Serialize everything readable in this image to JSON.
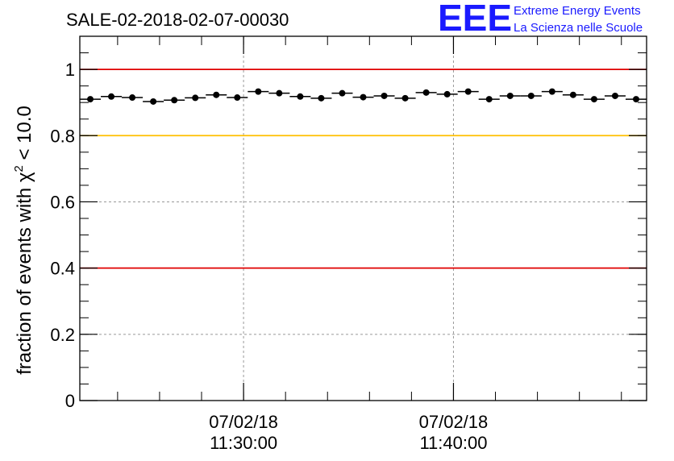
{
  "brand": {
    "logo_text": "EEE",
    "line1": "Extreme Energy Events",
    "line2": "La Scienza nelle Scuole",
    "color": "#1a1aff"
  },
  "chart_data": {
    "type": "scatter",
    "title": "SALE-02-2018-02-07-00030",
    "ylabel": "fraction of events with χ² < 10.0",
    "ylabel_parts": {
      "before": "fraction of events with χ",
      "sup": "2",
      "after": " < 10.0"
    },
    "ylim": [
      0,
      1.1
    ],
    "xlim": [
      0,
      27
    ],
    "xticks": [
      {
        "x": 7.8,
        "line1": "07/02/18",
        "line2": "11:30:00"
      },
      {
        "x": 17.8,
        "line1": "07/02/18",
        "line2": "11:40:00"
      }
    ],
    "yticks": [
      {
        "value": 0,
        "label": "0"
      },
      {
        "value": 0.2,
        "label": "0.2"
      },
      {
        "value": 0.4,
        "label": "0.4"
      },
      {
        "value": 0.6,
        "label": "0.6"
      },
      {
        "value": 0.8,
        "label": "0.8"
      },
      {
        "value": 1,
        "label": "1"
      }
    ],
    "grid": true,
    "reference_lines": [
      {
        "y": 1.0,
        "color": "#e00000"
      },
      {
        "y": 0.8,
        "color": "#ffbf00"
      },
      {
        "y": 0.4,
        "color": "#e00000"
      }
    ],
    "x": [
      0.5,
      1.5,
      2.5,
      3.5,
      4.5,
      5.5,
      6.5,
      7.5,
      8.5,
      9.5,
      10.5,
      11.5,
      12.5,
      13.5,
      14.5,
      15.5,
      16.5,
      17.5,
      18.5,
      19.5,
      20.5,
      21.5,
      22.5,
      23.5,
      24.5,
      25.5,
      26.5
    ],
    "values": [
      0.91,
      0.918,
      0.915,
      0.903,
      0.907,
      0.914,
      0.923,
      0.915,
      0.933,
      0.928,
      0.918,
      0.913,
      0.928,
      0.916,
      0.92,
      0.913,
      0.93,
      0.925,
      0.933,
      0.91,
      0.92,
      0.92,
      0.933,
      0.923,
      0.91,
      0.92,
      0.91
    ],
    "marker_color": "#000000"
  }
}
